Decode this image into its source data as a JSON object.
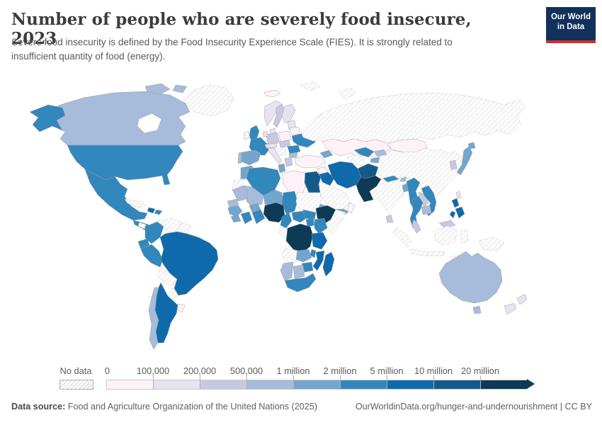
{
  "header": {
    "title": "Number of people who are severely food insecure, 2023",
    "subtitle": "Severe food insecurity is defined by the Food Insecurity Experience Scale (FIES). It is strongly related to insufficient quantity of food (energy).",
    "logo": {
      "line1": "Our World",
      "line2": "in Data",
      "bg": "#12305b",
      "accent": "#d2302c"
    }
  },
  "footer": {
    "source_label": "Data source:",
    "source_text": " Food and Agriculture Organization of the United Nations (2025)",
    "license_text": "OurWorldinData.org/hunger-and-undernourishment | CC BY"
  },
  "chart_data": {
    "type": "heatmap",
    "subtype": "choropleth-world-map",
    "title": "Number of people who are severely food insecure",
    "year": "2023",
    "legend": {
      "no_data_label": "No data",
      "position": "bottom",
      "bins": [
        {
          "label": "0",
          "range": "0–100,000",
          "color": "#fdf2f8"
        },
        {
          "label": "100,000",
          "range": "100,000–200,000",
          "color": "#e6e2f0"
        },
        {
          "label": "200,000",
          "range": "200,000–500,000",
          "color": "#c8c8e1"
        },
        {
          "label": "500,000",
          "range": "500,000–1 million",
          "color": "#a7bbda"
        },
        {
          "label": "1 million",
          "range": "1–2 million",
          "color": "#73a6cd"
        },
        {
          "label": "2 million",
          "range": "2–5 million",
          "color": "#3287bd"
        },
        {
          "label": "5 million",
          "range": "5–10 million",
          "color": "#0f6aab"
        },
        {
          "label": "10 million",
          "range": "10–20 million",
          "color": "#135a8b"
        },
        {
          "label": "20 million",
          "range": "20 million and over",
          "color": "#0d3a55"
        }
      ]
    },
    "regions": {
      "greenland": 0,
      "arctic-islands": 4,
      "canada": 4,
      "usa-alaska": 6,
      "usa": 6,
      "mexico": 6,
      "central-america": 6,
      "nicaragua-patch": 0,
      "cuba": 0,
      "haiti": 7,
      "dominican-republic": 6,
      "colombia": 6,
      "venezuela": 0,
      "guyanas": 0,
      "ecuador": 6,
      "peru": 6,
      "brazil": 7,
      "bolivia": 0,
      "paraguay": 0,
      "uruguay": 1,
      "argentina": 7,
      "chile": 4,
      "iceland": 1,
      "uk": 6,
      "ireland": 1,
      "norway": 2,
      "sweden": 3,
      "finland": 2,
      "denmark": 2,
      "baltics": 2,
      "belarus": 1,
      "poland": 1,
      "germany": 3,
      "benelux": 2,
      "france": 6,
      "spain": 5,
      "portugal": 4,
      "italy": 2,
      "alpine": 2,
      "czech-hungary": 3,
      "balkans-west": 0,
      "romania": 6,
      "bulgaria": 4,
      "greece": 3,
      "ukraine": 6,
      "russia": 0,
      "svalbard": 0,
      "novaya-zemlya": 0,
      "kazakhstan": 1,
      "mongolia": 1,
      "turkmenistan": 0,
      "uzbekistan": 6,
      "kyrgyzstan": 4,
      "tajikistan": 5,
      "caucasus": 5,
      "turkey": 1,
      "syria": 1,
      "iraq": 7,
      "israel-jordan": 1,
      "saudi-arabia": 0,
      "yemen": 5,
      "oman": 1,
      "iran": 7,
      "afghanistan": 8,
      "pakistan": 9,
      "india": 0,
      "nepal": 6,
      "bhutan": 4,
      "bangladesh": 5,
      "sri-lanka": 3,
      "myanmar": 6,
      "thailand": 6,
      "laos": 3,
      "cambodia": 4,
      "vietnam": 6,
      "malaysia": 3,
      "borneo-malaysia": 3,
      "philippines": 7,
      "taiwan": 2,
      "indonesia": 0,
      "new-guinea": 0,
      "china": 0,
      "south-korea": 3,
      "japan": 5,
      "morocco": 5,
      "western-sahara": 0,
      "algeria": 6,
      "tunisia": 5,
      "libya": 1,
      "egypt": 8,
      "mauritania": 4,
      "mali": 4,
      "niger": 5,
      "chad": 6,
      "sudan": 0,
      "eritrea": 5,
      "senegal-gambia": 4,
      "guinea-group": 5,
      "sierra-liberia": 5,
      "ivory-coast": 6,
      "burkina": 5,
      "ghana-togo-benin": 6,
      "nigeria": 9,
      "cameroon": 6,
      "car": 6,
      "south-sudan": 6,
      "ethiopia": 9,
      "somalia": 0,
      "gabon-congo": 0,
      "uganda": 6,
      "kenya": 6,
      "drc": 9,
      "tanzania": 7,
      "angola": 0,
      "zambia": 5,
      "malawi": 6,
      "mozambique": 7,
      "zimbabwe": 6,
      "namibia": 4,
      "botswana": 4,
      "south-africa": 6,
      "madagascar": 7,
      "australia": 4,
      "tasmania": 4,
      "new-zealand": 2
    }
  }
}
